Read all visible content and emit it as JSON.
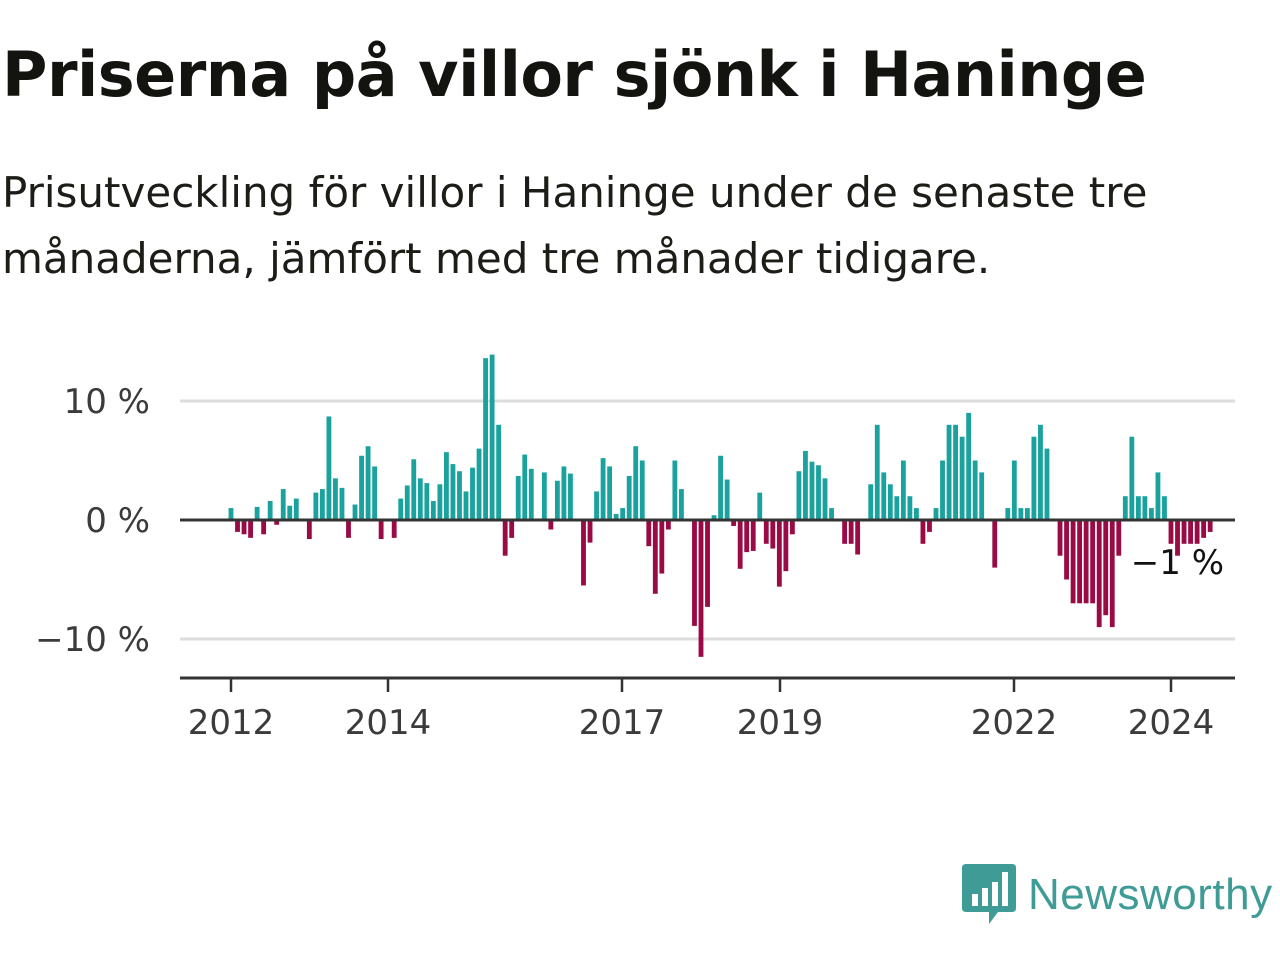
{
  "title": "Priserna på villor sjönk i Haninge",
  "subtitle": "Prisutveckling för villor i Haninge under de senaste tre månaderna, jämfört med tre månader tidigare.",
  "brand": {
    "name": "Newsworthy",
    "icon": "newsworthy-bar-chart-icon",
    "color": "#3e9b96"
  },
  "chart_data": {
    "type": "bar",
    "title": "",
    "xlabel": "",
    "ylabel": "",
    "y_unit": "%",
    "ylim": [
      -13,
      16
    ],
    "y_ticks": [
      {
        "value": 10,
        "label": "10 %"
      },
      {
        "value": 0,
        "label": "0 %"
      },
      {
        "value": -10,
        "label": "−10 %"
      }
    ],
    "x_ticks": [
      {
        "year": 2012,
        "label": "2012"
      },
      {
        "year": 2014,
        "label": "2014"
      },
      {
        "year": 2017,
        "label": "2017"
      },
      {
        "year": 2019,
        "label": "2019"
      },
      {
        "year": 2022,
        "label": "2022"
      },
      {
        "year": 2024,
        "label": "2024"
      }
    ],
    "start_month": "2012-01",
    "frequency": "monthly",
    "colors": {
      "positive": "#1aa39e",
      "negative": "#9a0a44",
      "gridline": "#dddddd",
      "zero_line": "#333333",
      "axis": "#333333"
    },
    "grid": true,
    "annotation": {
      "text": "−1 %",
      "value": -1,
      "month": "2024-05"
    },
    "values": [
      1,
      -1,
      -1.2,
      -1.5,
      1.1,
      -1.2,
      1.6,
      -0.4,
      2.6,
      1.2,
      1.8,
      0,
      -1.6,
      2.3,
      2.6,
      8.7,
      3.5,
      2.7,
      -1.5,
      1.3,
      5.4,
      6.2,
      4.5,
      -1.6,
      0,
      -1.5,
      1.8,
      2.9,
      5.1,
      3.5,
      3.1,
      1.6,
      3,
      5.7,
      4.7,
      4.1,
      2.4,
      4.4,
      6,
      13.6,
      13.9,
      8,
      -3,
      -1.5,
      3.7,
      5.5,
      4.3,
      0,
      4,
      -0.8,
      3.3,
      4.5,
      3.9,
      0,
      -5.5,
      -1.9,
      2.4,
      5.2,
      4.5,
      0.5,
      1,
      3.7,
      6.2,
      5,
      -2.2,
      -6.2,
      -4.5,
      -0.8,
      5,
      2.6,
      0,
      -8.9,
      -11.5,
      -7.3,
      0.4,
      5.4,
      3.4,
      -0.5,
      -4.1,
      -2.7,
      -2.6,
      2.3,
      -2,
      -2.4,
      -5.6,
      -4.3,
      -1.2,
      4.1,
      5.8,
      4.9,
      4.6,
      3.5,
      1,
      0,
      -2,
      -2,
      -2.9,
      0,
      3,
      8,
      4,
      3,
      2,
      5,
      2,
      1,
      -2,
      -1,
      1,
      5,
      8,
      8,
      7,
      9,
      5,
      4,
      0,
      -4,
      0,
      1,
      5,
      1,
      1,
      7,
      8,
      6,
      0,
      -3,
      -5,
      -7,
      -7,
      -7,
      -7,
      -9,
      -8,
      -9,
      -3,
      2,
      7,
      2,
      2,
      1,
      4,
      2,
      -2,
      -3,
      -2,
      -2,
      -2,
      -1.5,
      -1
    ]
  }
}
